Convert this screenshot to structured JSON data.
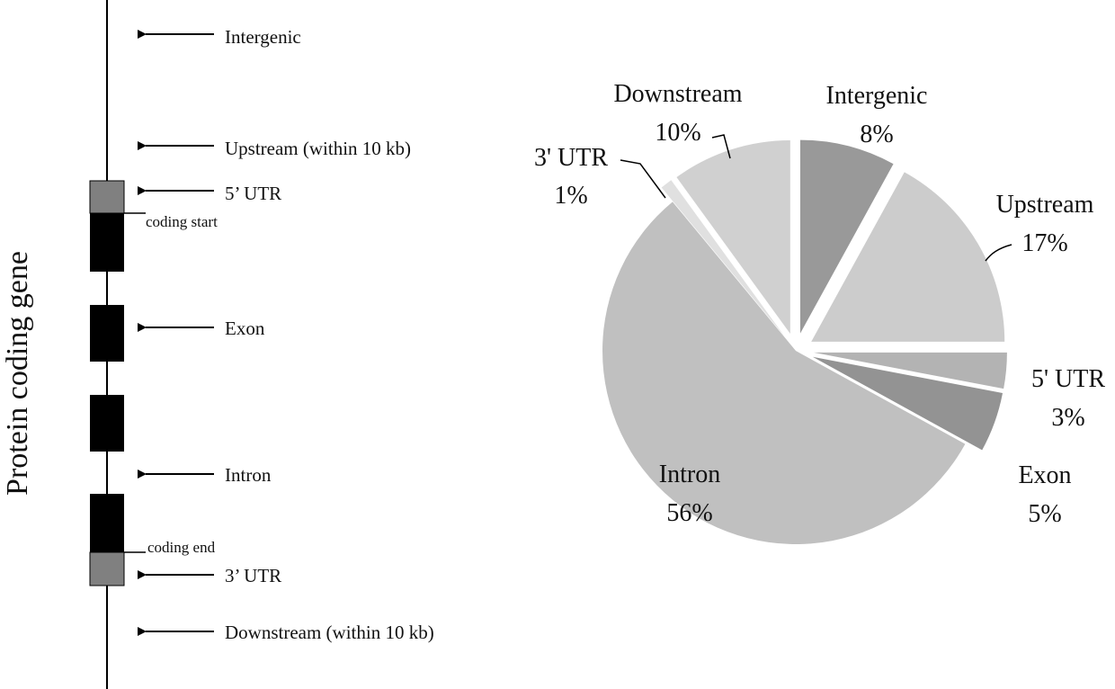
{
  "gene_diagram": {
    "axis_label": "Protein coding gene",
    "labels": [
      {
        "key": "intergenic",
        "text": "Intergenic"
      },
      {
        "key": "upstream",
        "text": "Upstream (within 10 kb)"
      },
      {
        "key": "utr5",
        "text": "5’ UTR"
      },
      {
        "key": "exon",
        "text": "Exon"
      },
      {
        "key": "intron",
        "text": "Intron"
      },
      {
        "key": "utr3",
        "text": "3’ UTR"
      },
      {
        "key": "downstream",
        "text": "Downstream (within 10 kb)"
      }
    ],
    "coding_start": "coding start",
    "coding_end": "coding end",
    "colors": {
      "exon": "#000000",
      "utr": "#808080",
      "line": "#000000"
    }
  },
  "chart_data": {
    "type": "pie",
    "title": "",
    "start_angle_deg": 0,
    "direction": "clockwise",
    "exploded": true,
    "slices": [
      {
        "name": "Intergenic",
        "value": 8,
        "label": "8%",
        "color": "#999999"
      },
      {
        "name": "Upstream",
        "value": 17,
        "label": "17%",
        "color": "#cccccc"
      },
      {
        "name": "5' UTR",
        "value": 3,
        "label": "3%",
        "color": "#b3b3b3"
      },
      {
        "name": "Exon",
        "value": 5,
        "label": "5%",
        "color": "#939393"
      },
      {
        "name": "Intron",
        "value": 56,
        "label": "56%",
        "color": "#c0c0c0"
      },
      {
        "name": "3' UTR",
        "value": 1,
        "label": "1%",
        "color": "#e0e0e0"
      },
      {
        "name": "Downstream",
        "value": 10,
        "label": "10%",
        "color": "#d0d0d0"
      }
    ]
  }
}
